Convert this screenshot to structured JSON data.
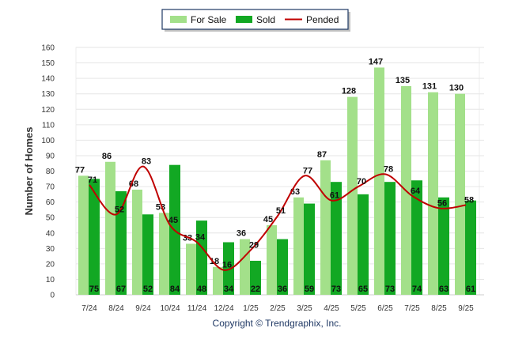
{
  "chart_data": {
    "type": "bar",
    "title": "",
    "xlabel": "",
    "ylabel": "Number of Homes",
    "ylim": [
      0,
      160
    ],
    "yticks": [
      0,
      10,
      20,
      30,
      40,
      50,
      60,
      70,
      80,
      90,
      100,
      110,
      120,
      130,
      140,
      150,
      160
    ],
    "grid": true,
    "legend_position": "top-center",
    "categories": [
      "7/24",
      "8/24",
      "9/24",
      "10/24",
      "11/24",
      "12/24",
      "1/25",
      "2/25",
      "3/25",
      "4/25",
      "5/25",
      "6/25",
      "7/25",
      "8/25",
      "9/25"
    ],
    "series": [
      {
        "name": "For Sale",
        "type": "bar",
        "color": "#a3e08a",
        "values": [
          77,
          86,
          68,
          53,
          33,
          18,
          36,
          45,
          63,
          87,
          128,
          147,
          135,
          131,
          130
        ]
      },
      {
        "name": "Sold",
        "type": "bar",
        "color": "#12a823",
        "values": [
          75,
          67,
          52,
          84,
          48,
          34,
          22,
          36,
          59,
          73,
          65,
          73,
          74,
          63,
          61
        ]
      },
      {
        "name": "Pended",
        "type": "line",
        "color": "#c00000",
        "values": [
          71,
          52,
          83,
          45,
          34,
          16,
          29,
          51,
          77,
          61,
          70,
          78,
          64,
          56,
          58
        ]
      }
    ],
    "footer": "Copyright © Trendgraphix, Inc."
  }
}
